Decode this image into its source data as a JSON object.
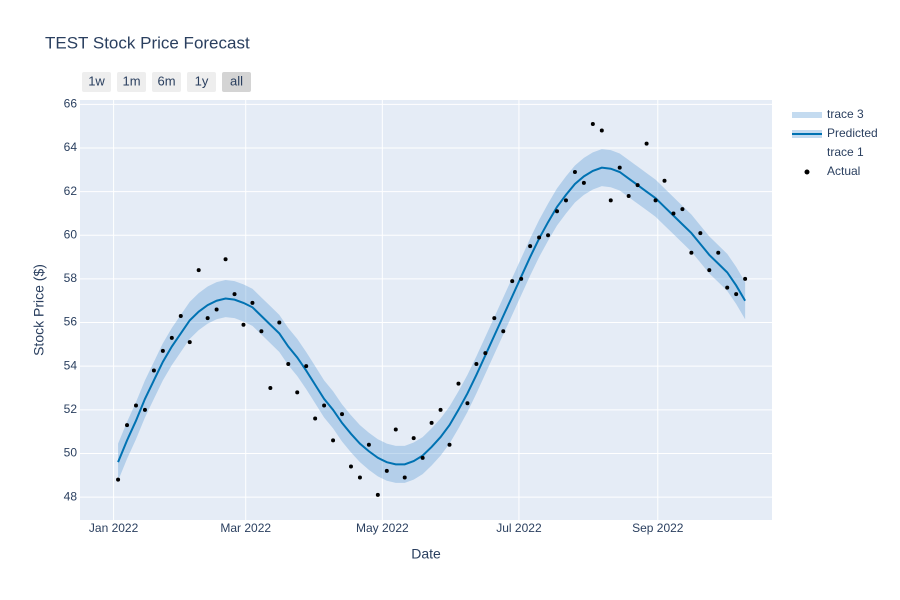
{
  "chart_data": {
    "type": "forecast",
    "title": "TEST Stock Price Forecast",
    "x_label": "Date",
    "y_label": "Stock Price ($)",
    "range_buttons": [
      "1w",
      "1m",
      "6m",
      "1y",
      "all"
    ],
    "active_button": 4,
    "x": [
      "2022-01-03",
      "2022-01-07",
      "2022-01-11",
      "2022-01-15",
      "2022-01-19",
      "2022-01-23",
      "2022-01-27",
      "2022-01-31",
      "2022-02-04",
      "2022-02-08",
      "2022-02-12",
      "2022-02-16",
      "2022-02-20",
      "2022-02-24",
      "2022-02-28",
      "2022-03-04",
      "2022-03-08",
      "2022-03-12",
      "2022-03-16",
      "2022-03-20",
      "2022-03-24",
      "2022-03-28",
      "2022-04-01",
      "2022-04-05",
      "2022-04-09",
      "2022-04-13",
      "2022-04-17",
      "2022-04-21",
      "2022-04-25",
      "2022-04-29",
      "2022-05-03",
      "2022-05-07",
      "2022-05-11",
      "2022-05-15",
      "2022-05-19",
      "2022-05-23",
      "2022-05-27",
      "2022-05-31",
      "2022-06-04",
      "2022-06-08",
      "2022-06-12",
      "2022-06-16",
      "2022-06-20",
      "2022-06-24",
      "2022-06-28",
      "2022-07-02",
      "2022-07-06",
      "2022-07-10",
      "2022-07-14",
      "2022-07-18",
      "2022-07-22",
      "2022-07-26",
      "2022-07-30",
      "2022-08-03",
      "2022-08-07",
      "2022-08-11",
      "2022-08-15",
      "2022-08-19",
      "2022-08-23",
      "2022-08-27",
      "2022-08-31",
      "2022-09-04",
      "2022-09-08",
      "2022-09-12",
      "2022-09-16",
      "2022-09-20",
      "2022-09-24",
      "2022-09-28",
      "2022-10-02",
      "2022-10-06",
      "2022-10-10"
    ],
    "series": [
      {
        "name": "trace 3",
        "mode": "band",
        "color": "rgba(100,160,215,0.38)",
        "values": [
          50.45,
          51.45,
          52.35,
          53.35,
          54.2,
          55.05,
          55.75,
          56.35,
          56.95,
          57.35,
          57.65,
          57.85,
          57.95,
          57.9,
          57.75,
          57.55,
          57.15,
          56.75,
          56.35,
          55.75,
          55.25,
          54.65,
          54.0,
          53.35,
          52.85,
          52.25,
          51.75,
          51.3,
          50.95,
          50.65,
          50.45,
          50.35,
          50.35,
          50.5,
          50.75,
          51.15,
          51.6,
          52.15,
          52.85,
          53.6,
          54.45,
          55.35,
          56.25,
          57.15,
          58.05,
          58.95,
          59.85,
          60.7,
          61.45,
          62.15,
          62.7,
          63.2,
          63.55,
          63.8,
          63.95,
          63.9,
          63.75,
          63.45,
          63.15,
          62.85,
          62.55,
          62.15,
          61.75,
          61.35,
          60.95,
          60.45,
          59.95,
          59.55,
          59.15,
          58.55,
          57.85
        ]
      },
      {
        "name": "Predicted",
        "mode": "line",
        "color": "#0072b2",
        "values": [
          49.6,
          50.6,
          51.5,
          52.5,
          53.35,
          54.2,
          54.9,
          55.5,
          56.1,
          56.5,
          56.8,
          57.0,
          57.1,
          57.05,
          56.9,
          56.7,
          56.3,
          55.9,
          55.5,
          54.9,
          54.4,
          53.8,
          53.15,
          52.5,
          52.0,
          51.4,
          50.9,
          50.45,
          50.1,
          49.8,
          49.6,
          49.5,
          49.5,
          49.65,
          49.9,
          50.3,
          50.75,
          51.3,
          52.0,
          52.75,
          53.6,
          54.5,
          55.4,
          56.3,
          57.2,
          58.1,
          59.0,
          59.85,
          60.6,
          61.3,
          61.85,
          62.35,
          62.7,
          62.95,
          63.1,
          63.05,
          62.9,
          62.6,
          62.3,
          62.0,
          61.7,
          61.3,
          60.9,
          60.5,
          60.1,
          59.6,
          59.1,
          58.7,
          58.3,
          57.7,
          57.0
        ]
      },
      {
        "name": "trace 1",
        "mode": "band-lower",
        "color": "rgba(0,0,0,0)",
        "values": [
          48.75,
          49.75,
          50.65,
          51.65,
          52.5,
          53.35,
          54.05,
          54.65,
          55.25,
          55.65,
          55.95,
          56.15,
          56.25,
          56.2,
          56.05,
          55.85,
          55.45,
          55.05,
          54.65,
          54.05,
          53.55,
          52.95,
          52.3,
          51.65,
          51.15,
          50.55,
          50.05,
          49.6,
          49.25,
          48.95,
          48.75,
          48.65,
          48.65,
          48.8,
          49.05,
          49.45,
          49.9,
          50.45,
          51.15,
          51.9,
          52.75,
          53.65,
          54.55,
          55.45,
          56.35,
          57.25,
          58.15,
          59.0,
          59.75,
          60.45,
          61.0,
          61.5,
          61.85,
          62.1,
          62.25,
          62.2,
          62.05,
          61.75,
          61.45,
          61.15,
          60.85,
          60.45,
          60.05,
          59.65,
          59.25,
          58.75,
          58.25,
          57.85,
          57.45,
          56.85,
          56.15
        ]
      },
      {
        "name": "Actual",
        "mode": "markers",
        "color": "#000000",
        "values": [
          48.8,
          51.3,
          52.2,
          52.0,
          53.8,
          54.7,
          55.3,
          56.3,
          55.1,
          58.4,
          56.2,
          56.6,
          58.9,
          57.3,
          55.9,
          56.9,
          55.6,
          53.0,
          56.0,
          54.1,
          52.8,
          54.0,
          51.6,
          52.2,
          50.6,
          51.8,
          49.4,
          48.9,
          50.4,
          48.1,
          49.2,
          51.1,
          48.9,
          50.7,
          49.8,
          51.4,
          52.0,
          50.4,
          53.2,
          52.3,
          54.1,
          54.6,
          56.2,
          55.6,
          57.9,
          58.0,
          59.5,
          59.9,
          60.0,
          61.1,
          61.6,
          62.9,
          62.4,
          65.1,
          64.8,
          61.6,
          63.1,
          61.8,
          62.3,
          64.2,
          61.6,
          62.5,
          61.0,
          61.2,
          59.2,
          60.1,
          58.4,
          59.2,
          57.6,
          57.3,
          58.0
        ]
      }
    ],
    "xlim": [
      "2021-12-17",
      "2022-10-22"
    ],
    "xticks": [
      {
        "value": "2022-01-01",
        "label": "Jan 2022"
      },
      {
        "value": "2022-03-01",
        "label": "Mar 2022"
      },
      {
        "value": "2022-05-01",
        "label": "May 2022"
      },
      {
        "value": "2022-07-01",
        "label": "Jul 2022"
      },
      {
        "value": "2022-09-01",
        "label": "Sep 2022"
      }
    ],
    "ylim": [
      46.95,
      66.2
    ],
    "yticks": [
      48,
      50,
      52,
      54,
      56,
      58,
      60,
      62,
      64,
      66
    ],
    "grid": true,
    "legend": "right"
  }
}
